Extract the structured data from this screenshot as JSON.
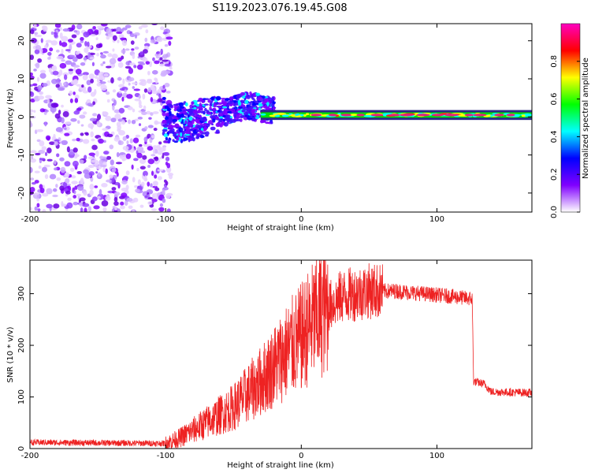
{
  "title": "S119.2023.076.19.45.G08",
  "chart_data": [
    {
      "type": "heatmap",
      "xlabel": "Height of straight line (km)",
      "ylabel": "Frequency (Hz)",
      "xlim": [
        -200,
        170
      ],
      "ylim": [
        -25,
        24.5
      ],
      "x_ticks": [
        -200,
        -100,
        0,
        100
      ],
      "y_ticks": [
        20,
        10,
        0,
        -10,
        -20
      ],
      "colorbar": {
        "label": "Normalized spectral amplitude",
        "ticks": [
          0.0,
          0.2,
          0.4,
          0.6,
          0.8
        ],
        "range": [
          0,
          1
        ],
        "colors": [
          "#ffffff",
          "#8000ff",
          "#0000ff",
          "#00ffff",
          "#00ff00",
          "#ffff00",
          "#ff0000",
          "#ff00c0"
        ]
      },
      "trend": [
        {
          "x": -100,
          "y": -2
        },
        {
          "x": -80,
          "y": -1
        },
        {
          "x": -60,
          "y": 1
        },
        {
          "x": -40,
          "y": 3
        },
        {
          "x": -20,
          "y": 1.5
        },
        {
          "x": 0,
          "y": 1
        },
        {
          "x": 50,
          "y": 0.5
        },
        {
          "x": 100,
          "y": 0.5
        },
        {
          "x": 170,
          "y": 0.5
        }
      ],
      "noise_region_x": [
        -200,
        -100
      ]
    },
    {
      "type": "line",
      "xlabel": "Height of straight line (km)",
      "ylabel": "SNR (10 * v/v)",
      "xlim": [
        -200,
        170
      ],
      "ylim": [
        0,
        365
      ],
      "x_ticks": [
        -200,
        -100,
        0,
        100
      ],
      "y_ticks": [
        0,
        100,
        200,
        300
      ],
      "color": "#ee2222",
      "envelope": [
        {
          "x": -200,
          "y": 12
        },
        {
          "x": -100,
          "y": 10
        },
        {
          "x": -90,
          "y": 20
        },
        {
          "x": -70,
          "y": 50
        },
        {
          "x": -50,
          "y": 80
        },
        {
          "x": -30,
          "y": 130
        },
        {
          "x": -20,
          "y": 160
        },
        {
          "x": -10,
          "y": 190
        },
        {
          "x": 0,
          "y": 215
        },
        {
          "x": 10,
          "y": 250
        },
        {
          "x": 20,
          "y": 275
        },
        {
          "x": 30,
          "y": 295
        },
        {
          "x": 40,
          "y": 300
        },
        {
          "x": 50,
          "y": 305
        },
        {
          "x": 60,
          "y": 305
        },
        {
          "x": 70,
          "y": 305
        },
        {
          "x": 90,
          "y": 300
        },
        {
          "x": 110,
          "y": 295
        },
        {
          "x": 126,
          "y": 290
        },
        {
          "x": 127,
          "y": 130
        },
        {
          "x": 135,
          "y": 125
        },
        {
          "x": 140,
          "y": 110
        },
        {
          "x": 170,
          "y": 108
        }
      ]
    }
  ]
}
